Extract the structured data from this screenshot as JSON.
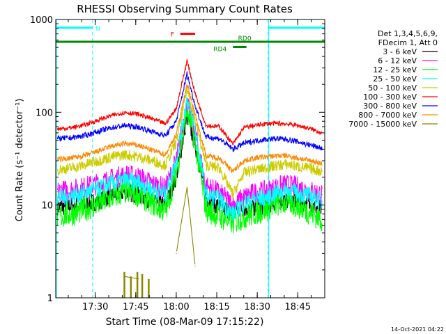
{
  "chart_data": {
    "type": "line",
    "title": "RHESSI Observing Summary Count Rates",
    "xlabel": "Start Time (08-Mar-09 17:15:22)",
    "ylabel": "Count Rate (s⁻¹ detector⁻¹)",
    "yscale": "log",
    "ylim": [
      1,
      1000
    ],
    "xlim": [
      "17:15:22",
      "18:55:00"
    ],
    "x_ticks": [
      "17:30",
      "17:45",
      "18:00",
      "18:15",
      "18:30",
      "18:45"
    ],
    "y_ticks": [
      "1",
      "10",
      "100",
      "1000"
    ],
    "timestamp": "14-Oct-2021 04:22",
    "legend": {
      "placement": "right",
      "header": [
        "Det 1,3,4,5,6,9,",
        "FDecim 1, Att 0"
      ],
      "entries": [
        {
          "label": "3 - 6 keV",
          "color": "#000000"
        },
        {
          "label": "6 - 12 keV",
          "color": "#ff00ff"
        },
        {
          "label": "12 - 25 keV",
          "color": "#00ff00"
        },
        {
          "label": "25 - 50 keV",
          "color": "#00ffff"
        },
        {
          "label": "50 - 100 keV",
          "color": "#cccc00"
        },
        {
          "label": "100 - 300 keV",
          "color": "#ff0000"
        },
        {
          "label": "300 - 800 keV",
          "color": "#0000ff"
        },
        {
          "label": "800 - 7000 keV",
          "color": "#ff8800"
        },
        {
          "label": "7000 - 15000 keV",
          "color": "#888800"
        }
      ]
    },
    "flags": [
      {
        "label": "N",
        "color": "#00ffff",
        "segments": [
          [
            "17:15:22",
            "17:29:00"
          ],
          [
            "18:34:00",
            "18:55:00"
          ]
        ],
        "level": 815
      },
      {
        "label": "F",
        "color": "#ff0000",
        "segments": [
          [
            "18:01:30",
            "18:07:00"
          ]
        ],
        "level": 700
      },
      {
        "label": "RD0",
        "color": "#008800",
        "segments": [
          [
            "17:15:22",
            "18:55:00"
          ]
        ],
        "level": 575
      },
      {
        "label": "RD4",
        "color": "#008800",
        "segments": [
          [
            "18:21:00",
            "18:26:00"
          ]
        ],
        "level": 505
      }
    ],
    "night_boundaries": [
      "17:29:00",
      "18:34:00",
      "18:55:00"
    ],
    "series": [
      {
        "name": "3 - 6 keV",
        "color": "#000000",
        "values": [
          9.5,
          9.8,
          10.2,
          11,
          12.5,
          13.8,
          13,
          11.2,
          9.8,
          20,
          90,
          45,
          12,
          9.5,
          8.5,
          9.2,
          9.5,
          9.8,
          10.8,
          11.5,
          11,
          10,
          9
        ]
      },
      {
        "name": "6 - 12 keV",
        "color": "#ff00ff",
        "values": [
          14,
          14.5,
          15.5,
          17,
          19,
          21,
          20,
          17,
          15,
          30,
          125,
          60,
          16,
          13.5,
          10,
          12,
          13.5,
          14,
          15.5,
          16.5,
          15.5,
          14,
          13
        ]
      },
      {
        "name": "12 - 25 keV",
        "color": "#00ff00",
        "values": [
          7.5,
          8,
          9,
          10.2,
          12,
          14,
          13,
          10.5,
          8.5,
          22,
          105,
          48,
          9,
          7.5,
          6.5,
          7.5,
          8.2,
          9,
          10.2,
          10.8,
          9.8,
          8.2,
          7
        ]
      },
      {
        "name": "25 - 50 keV",
        "color": "#00ffff",
        "values": [
          12,
          12.5,
          13.5,
          15,
          17,
          18.5,
          17.5,
          15,
          13,
          30,
          140,
          65,
          13,
          11.5,
          8,
          10.5,
          11.5,
          12,
          13.5,
          14.5,
          13.5,
          12.3,
          11
        ]
      },
      {
        "name": "50 - 100 keV",
        "color": "#cccc00",
        "values": [
          24,
          25,
          27,
          30,
          33,
          35,
          33,
          30,
          27,
          48,
          180,
          82,
          27,
          25,
          13,
          22,
          24,
          25,
          26.5,
          27.5,
          26,
          24.5,
          23
        ]
      },
      {
        "name": "100 - 300 keV",
        "color": "#ff0000",
        "values": [
          66,
          68,
          73,
          82,
          92,
          100,
          95,
          85,
          75,
          110,
          360,
          160,
          72,
          70,
          45,
          68,
          72,
          75,
          76,
          75,
          72,
          66,
          60
        ]
      },
      {
        "name": "300 - 800 keV",
        "color": "#0000ff",
        "values": [
          52,
          53,
          56,
          62,
          68,
          72,
          69,
          62,
          56,
          80,
          260,
          118,
          54,
          52,
          40,
          46,
          49,
          51,
          52,
          51,
          48,
          44,
          41
        ]
      },
      {
        "name": "800 - 7000 keV",
        "color": "#ff8800",
        "values": [
          31,
          32,
          34,
          38,
          43,
          46,
          44,
          39,
          35,
          58,
          200,
          95,
          34,
          32,
          23,
          30,
          32,
          33,
          34,
          34,
          32,
          30,
          28
        ]
      },
      {
        "name": "7000 - 15000 keV",
        "color": "#888800",
        "values": [
          null,
          null,
          null,
          null,
          null,
          1.7,
          1.6,
          null,
          null,
          3,
          15.5,
          2.2,
          null,
          null,
          null,
          null,
          null,
          null,
          null,
          null,
          null,
          null,
          null
        ]
      }
    ],
    "x": [
      "17:16:00",
      "17:21:00",
      "17:26:00",
      "17:31:00",
      "17:36:00",
      "17:41:00",
      "17:46:00",
      "17:51:00",
      "17:56:00",
      "18:00:00",
      "18:04:00",
      "18:07:00",
      "18:11:00",
      "18:16:00",
      "18:21:00",
      "18:25:00",
      "18:29:00",
      "18:33:00",
      "18:37:00",
      "18:41:00",
      "18:45:00",
      "18:50:00",
      "18:54:00"
    ]
  }
}
